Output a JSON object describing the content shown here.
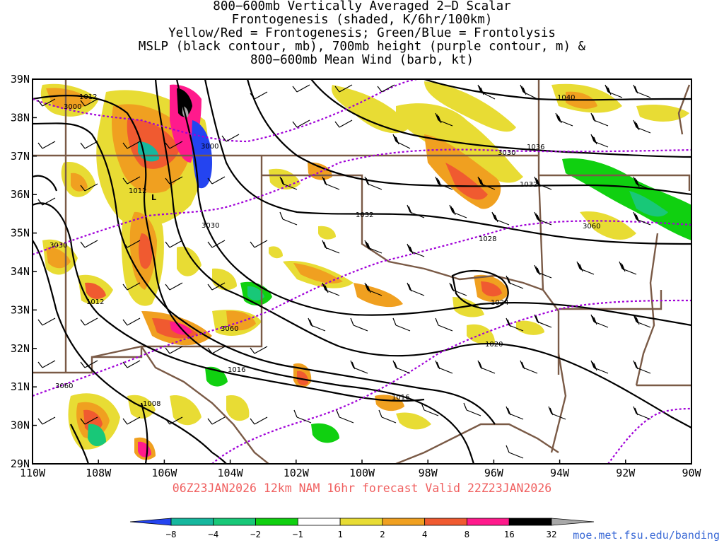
{
  "title": {
    "line1": "800−600mb Vertically Averaged 2−D Scalar",
    "line2": "Frontogenesis (shaded, K/6hr/100km)",
    "line3": "Yellow/Red = Frontogenesis;  Green/Blue = Frontolysis",
    "line4": "MSLP (black contour, mb), 700mb height (purple contour, m) &",
    "line5": "800−600mb Mean Wind (barb, kt)"
  },
  "axes": {
    "lon_labels": [
      "110W",
      "108W",
      "106W",
      "104W",
      "102W",
      "100W",
      "98W",
      "96W",
      "94W",
      "92W",
      "90W"
    ],
    "lat_labels": [
      "39N",
      "38N",
      "37N",
      "36N",
      "35N",
      "34N",
      "33N",
      "32N",
      "31N",
      "30N",
      "29N"
    ],
    "lon_range": [
      -110,
      -90
    ],
    "lat_range": [
      29,
      39
    ]
  },
  "contour_labels": {
    "mslp": [
      "1012",
      "1012",
      "1012",
      "1008",
      "1016",
      "1016",
      "1020",
      "1024",
      "1028",
      "1032",
      "1032",
      "1036",
      "1040"
    ],
    "height": [
      "3000",
      "3000",
      "3030",
      "3030",
      "3030",
      "3060",
      "3060",
      "3060"
    ]
  },
  "low_label": "L",
  "footer": "06Z23JAN2026 12km NAM 16hr forecast Valid 22Z23JAN2026",
  "credit": "moe.met.fsu.edu/banding",
  "colorbar": {
    "labels": [
      "−8",
      "−4",
      "−2",
      "−1",
      "1",
      "2",
      "4",
      "8",
      "16",
      "32"
    ],
    "colors": [
      "#2444f0",
      "#16b79e",
      "#18c878",
      "#10d010",
      "#ffffff",
      "#e8dc34",
      "#f0a020",
      "#f05a30",
      "#ff1a8c",
      "#000000",
      "#a8a8a8"
    ]
  },
  "colors": {
    "mslp": "#000000",
    "height": "#a000d8",
    "borders": "#7a5a46",
    "barbs": "#000000"
  }
}
